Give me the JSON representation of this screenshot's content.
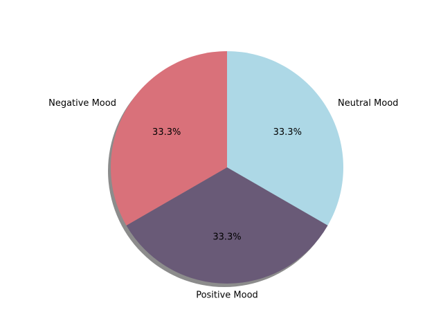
{
  "chart_data": {
    "type": "pie",
    "categories": [
      "Neutral Mood",
      "Positive Mood",
      "Negative Mood"
    ],
    "values": [
      33.3,
      33.3,
      33.3
    ],
    "percent_labels": [
      "33.3%",
      "33.3%",
      "33.3%"
    ],
    "colors": [
      "#add8e6",
      "#695a77",
      "#d9717a"
    ],
    "shadow": true,
    "start_angle_deg": 90,
    "direction": "clockwise",
    "title": ""
  }
}
